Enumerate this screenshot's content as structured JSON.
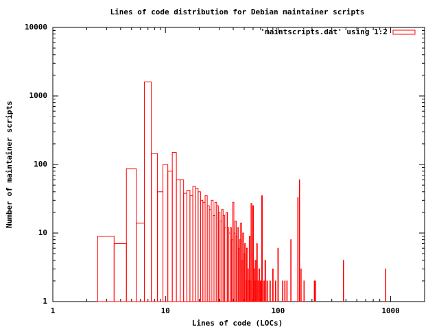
{
  "chart_data": {
    "type": "boxes",
    "title": "Lines of code distribution for Debian maintainer scripts",
    "xlabel": "Lines of code (LOCs)",
    "ylabel": "Number of maintainer scripts",
    "x": [
      3,
      4,
      5,
      6,
      7,
      8,
      9,
      10,
      11,
      12,
      13,
      14,
      15,
      16,
      17,
      18,
      19,
      20,
      21,
      22,
      23,
      24,
      25,
      26,
      27,
      28,
      29,
      30,
      31,
      32,
      33,
      34,
      35,
      36,
      37,
      38,
      39,
      40,
      41,
      42,
      43,
      44,
      45,
      46,
      47,
      48,
      49,
      50,
      51,
      52,
      53,
      54,
      55,
      56,
      57,
      58,
      60,
      61,
      62,
      63,
      65,
      66,
      68,
      70,
      72,
      75,
      77,
      80,
      85,
      90,
      95,
      100,
      110,
      115,
      120,
      130,
      150,
      155,
      160,
      170,
      210,
      215,
      380,
      900
    ],
    "series": [
      {
        "name": "'maintscripts.dat' using 1:2",
        "color": "#ff0000",
        "values": [
          9,
          7,
          87,
          14,
          1600,
          145,
          40,
          100,
          80,
          150,
          60,
          60,
          38,
          42,
          35,
          48,
          45,
          40,
          30,
          28,
          35,
          25,
          22,
          30,
          18,
          28,
          25,
          20,
          15,
          22,
          18,
          12,
          20,
          12,
          10,
          12,
          8,
          28,
          10,
          15,
          9,
          12,
          6,
          8,
          14,
          4,
          10,
          5,
          7,
          2,
          6,
          3,
          2,
          9,
          2,
          27,
          25,
          3,
          2,
          4,
          7,
          2,
          3,
          2,
          35,
          2,
          4,
          2,
          2,
          3,
          2,
          6,
          2,
          2,
          2,
          8,
          33,
          60,
          3,
          2,
          2,
          2,
          4,
          3
        ]
      }
    ],
    "xscale": "log",
    "yscale": "log",
    "xlim": [
      1,
      2000
    ],
    "ylim": [
      1,
      10000
    ],
    "xticks": [
      1,
      10,
      100,
      1000
    ],
    "yticks": [
      1,
      10,
      100,
      1000,
      10000
    ],
    "legend": "upper right"
  }
}
